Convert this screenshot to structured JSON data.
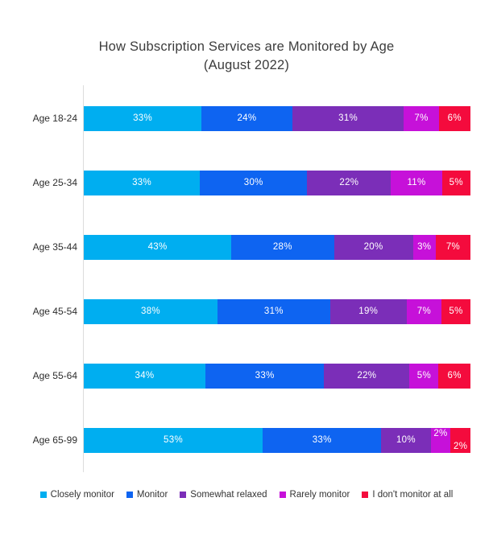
{
  "title": {
    "line1": "How Subscription Services are Monitored by Age",
    "line2": "(August 2022)"
  },
  "chart_data": {
    "type": "bar",
    "variant": "horizontal-stacked-percent",
    "title": "How Subscription Services are Monitored by Age",
    "subtitle": "(August 2022)",
    "categories": [
      "Age 18-24",
      "Age 25-34",
      "Age 35-44",
      "Age 45-54",
      "Age 55-64",
      "Age 65-99"
    ],
    "series": [
      {
        "name": "Closely monitor",
        "color": "#00AEF0",
        "values": [
          33,
          33,
          43,
          38,
          34,
          53
        ]
      },
      {
        "name": "Monitor",
        "color": "#0E64F1",
        "values": [
          24,
          30,
          28,
          31,
          33,
          33
        ]
      },
      {
        "name": "Somewhat relaxed",
        "color": "#7B2EB8",
        "values": [
          31,
          22,
          20,
          19,
          22,
          10
        ]
      },
      {
        "name": "Rarely monitor",
        "color": "#C611D9",
        "values": [
          7,
          11,
          3,
          7,
          5,
          2
        ]
      },
      {
        "name": "I don't monitor at all",
        "color": "#F40B3D",
        "values": [
          6,
          5,
          7,
          5,
          6,
          2
        ]
      }
    ],
    "value_suffix": "%",
    "data_labels": "inside-center-white",
    "legend_position": "bottom-center",
    "grid": false,
    "axis_line_color": "#dddddd"
  },
  "colors": {
    "background": "#FFFFFF",
    "title_text": "#3C3C3C",
    "category_text": "#2D2D2D",
    "legend_text": "#333333",
    "bar_label_text": "#FFFFFF"
  }
}
